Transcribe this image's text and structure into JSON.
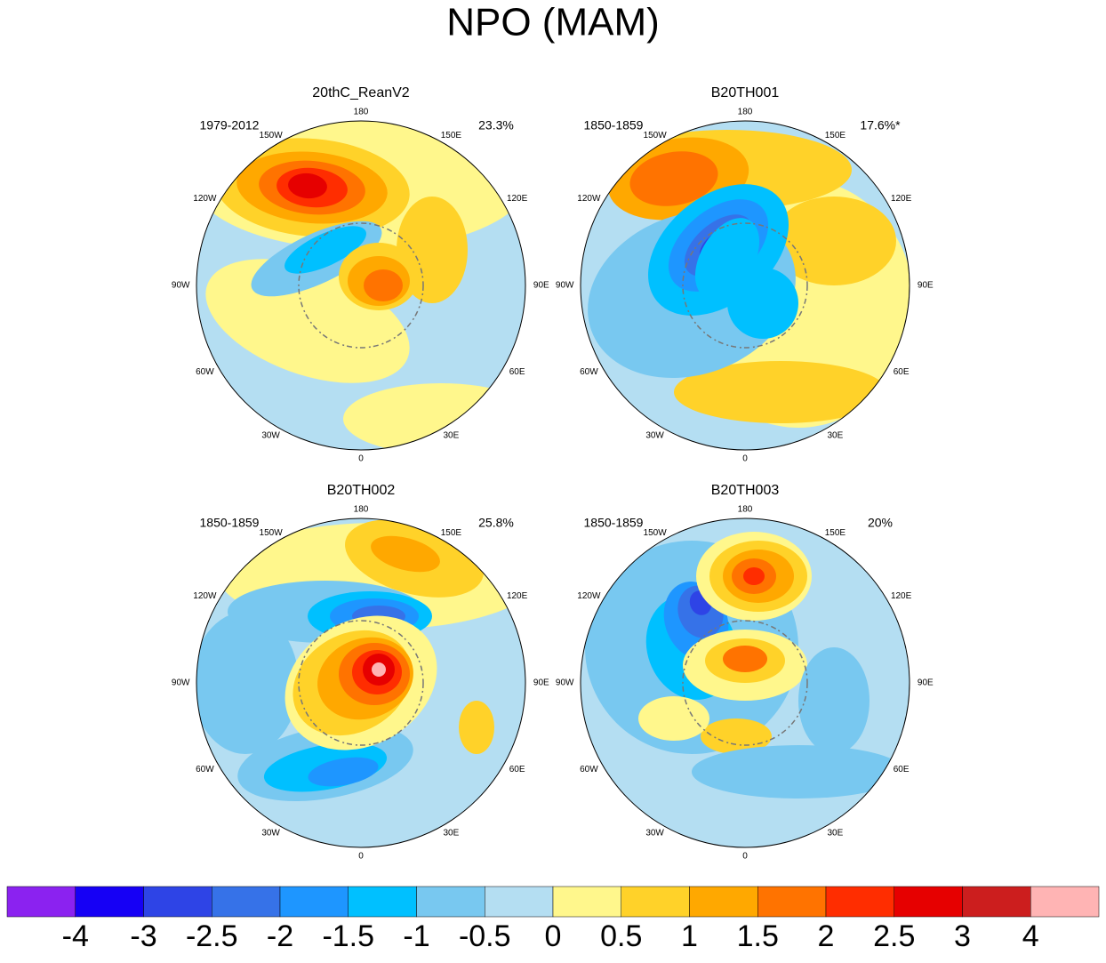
{
  "title": "NPO (MAM)",
  "panels": [
    {
      "title": "20thC_ReanV2",
      "period": "1979-2012",
      "variance": "23.3%"
    },
    {
      "title": "B20TH001",
      "period": "1850-1859",
      "variance": "17.6%*"
    },
    {
      "title": "B20TH002",
      "period": "1850-1859",
      "variance": "25.8%"
    },
    {
      "title": "B20TH003",
      "period": "1850-1859",
      "variance": "20%"
    }
  ],
  "longitude_labels": [
    "180",
    "150E",
    "120E",
    "90E",
    "60E",
    "30E",
    "0",
    "30W",
    "60W",
    "90W",
    "120W",
    "150W"
  ],
  "colorbar": {
    "colors": [
      "#8b22f0",
      "#1600f5",
      "#2e44e6",
      "#3672e8",
      "#1e96ff",
      "#00c0ff",
      "#78c8f0",
      "#b4def2",
      "#fff78c",
      "#ffd229",
      "#ffa800",
      "#ff7300",
      "#ff2d00",
      "#e60000",
      "#cc1e1e",
      "#ffb4b4"
    ],
    "labels": [
      "-4",
      "-3",
      "-2.5",
      "-2",
      "-1.5",
      "-1",
      "-0.5",
      "0",
      "0.5",
      "1",
      "1.5",
      "2",
      "2.5",
      "3",
      "4"
    ]
  }
}
